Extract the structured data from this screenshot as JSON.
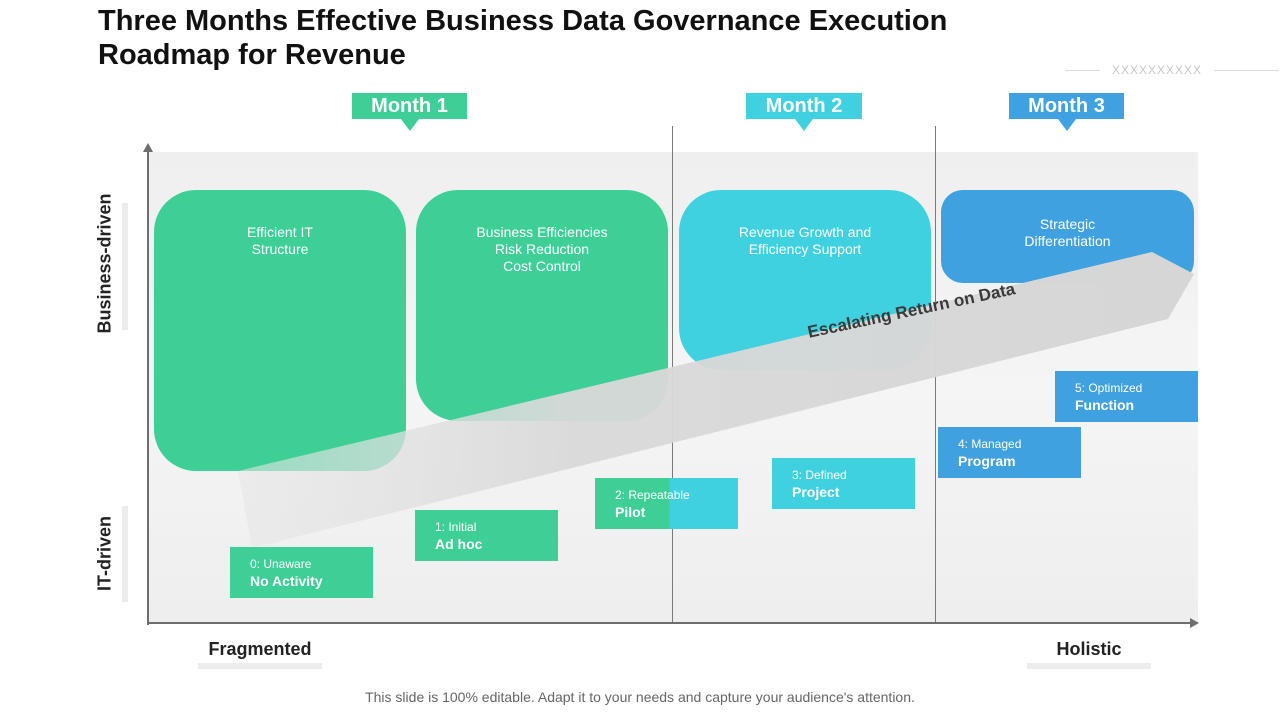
{
  "title": "Three Months Effective Business Data Governance Execution Roadmap for Revenue",
  "placeholder_mark": "XXXXXXXXXX",
  "months": [
    "Month 1",
    "Month 2",
    "Month 3"
  ],
  "y_axis": {
    "top_label": "Business-driven",
    "bottom_label": "IT-driven"
  },
  "x_axis": {
    "left_label": "Fragmented",
    "right_label": "Holistic"
  },
  "blocks": [
    {
      "lines": [
        "Efficient IT",
        "Structure"
      ],
      "color": "#3ecf97"
    },
    {
      "lines": [
        "Business Efficiencies",
        "Risk Reduction",
        "Cost Control"
      ],
      "color": "#3ecf97"
    },
    {
      "lines": [
        "Revenue Growth and",
        "Efficiency Support"
      ],
      "color": "#3fd1e0"
    },
    {
      "lines": [
        "Strategic",
        "Differentiation"
      ],
      "color": "#3fa1df"
    }
  ],
  "ribbon_label": "Escalating Return on Data",
  "steps": [
    {
      "num": "0: Unaware",
      "name": "No Activity"
    },
    {
      "num": "1: Initial",
      "name": "Ad hoc"
    },
    {
      "num": "2: Repeatable",
      "name": "Pilot"
    },
    {
      "num": "3: Defined",
      "name": "Project"
    },
    {
      "num": "4: Managed",
      "name": "Program"
    },
    {
      "num": "5: Optimized",
      "name": "Function"
    }
  ],
  "footer": "This slide is 100% editable. Adapt it to your needs and capture your audience's attention."
}
